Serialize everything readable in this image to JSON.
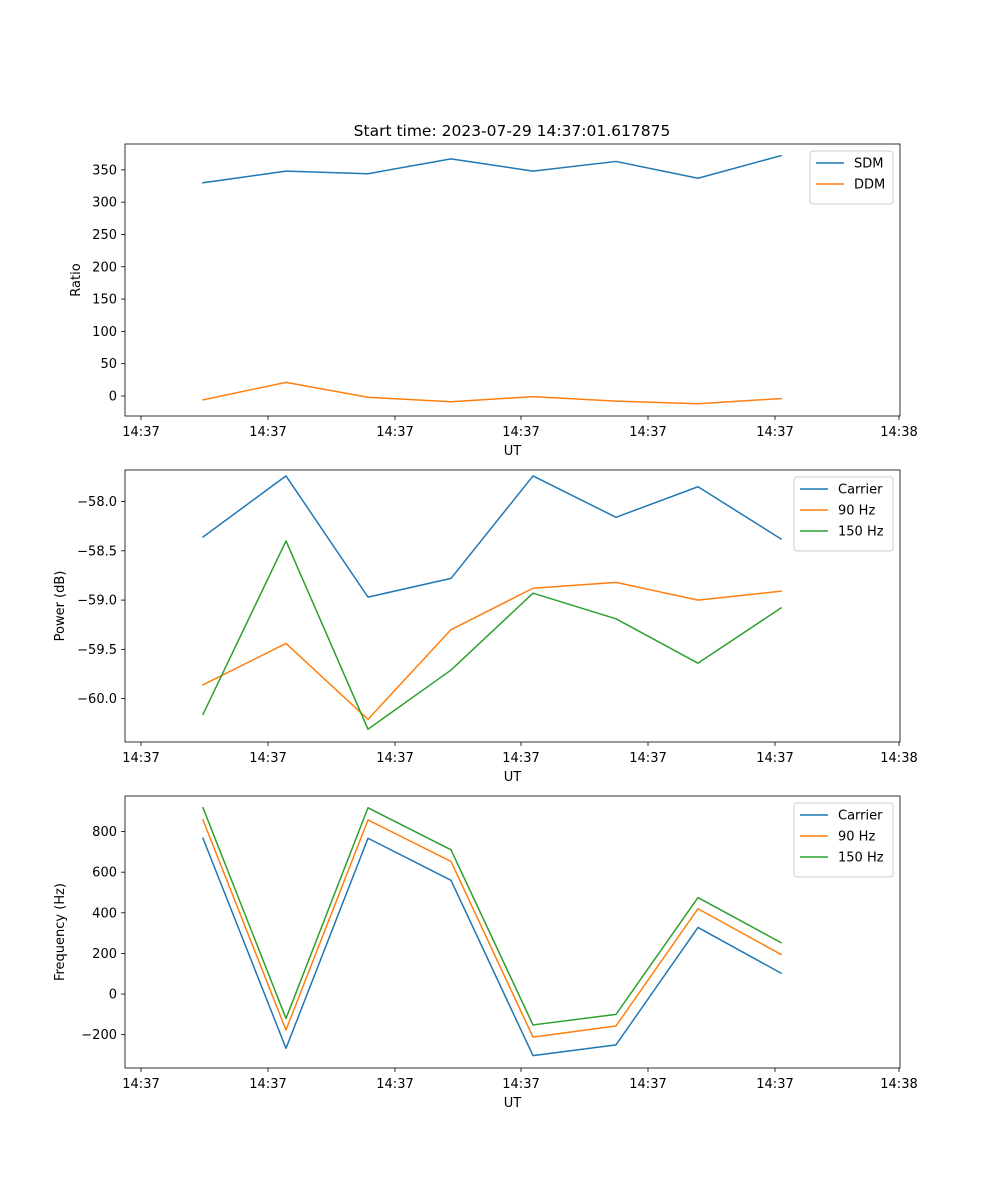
{
  "title": "Start time: 2023-07-29 14:37:01.617875",
  "chart_data": [
    {
      "type": "line",
      "xlabel": "UT",
      "ylabel": "Ratio",
      "x_tick_labels": [
        "14:37",
        "14:37",
        "14:37",
        "14:37",
        "14:37",
        "14:37",
        "14:38"
      ],
      "yticks": [
        0,
        50,
        100,
        150,
        200,
        250,
        300,
        350
      ],
      "ylim": [
        -31,
        390
      ],
      "legend_position": "top-right",
      "series": [
        {
          "name": "SDM",
          "color": "#1f77b4",
          "values": [
            330,
            348,
            344,
            367,
            348,
            363,
            337,
            372
          ]
        },
        {
          "name": "DDM",
          "color": "#ff7f0e",
          "values": [
            -6,
            21,
            -2,
            -9,
            -1,
            -8,
            -12,
            -4
          ]
        }
      ]
    },
    {
      "type": "line",
      "xlabel": "UT",
      "ylabel": "Power (dB)",
      "x_tick_labels": [
        "14:37",
        "14:37",
        "14:37",
        "14:37",
        "14:37",
        "14:37",
        "14:38"
      ],
      "yticks": [
        -60.0,
        -59.5,
        -59.0,
        -58.5,
        -58.0
      ],
      "ytick_labels": [
        "−60.0",
        "−59.5",
        "−59.0",
        "−58.5",
        "−58.0"
      ],
      "ylim": [
        -60.44,
        -57.68
      ],
      "legend_position": "top-right",
      "series": [
        {
          "name": "Carrier",
          "color": "#1f77b4",
          "values": [
            -58.36,
            -57.74,
            -58.97,
            -58.78,
            -57.74,
            -58.16,
            -57.85,
            -58.38
          ]
        },
        {
          "name": "90 Hz",
          "color": "#ff7f0e",
          "values": [
            -59.86,
            -59.44,
            -60.21,
            -59.3,
            -58.88,
            -58.82,
            -59.0,
            -58.91
          ]
        },
        {
          "name": "150 Hz",
          "color": "#2ca02c",
          "values": [
            -60.16,
            -58.4,
            -60.31,
            -59.71,
            -58.93,
            -59.19,
            -59.64,
            -59.08
          ]
        }
      ]
    },
    {
      "type": "line",
      "xlabel": "UT",
      "ylabel": "Frequency (Hz)",
      "x_tick_labels": [
        "14:37",
        "14:37",
        "14:37",
        "14:37",
        "14:37",
        "14:37",
        "14:38"
      ],
      "yticks": [
        -200,
        0,
        200,
        400,
        600,
        800
      ],
      "ytick_labels": [
        "−200",
        "0",
        "200",
        "400",
        "600",
        "800"
      ],
      "ylim": [
        -364,
        975
      ],
      "legend_position": "top-right",
      "series": [
        {
          "name": "Carrier",
          "color": "#1f77b4",
          "values": [
            767,
            -267,
            767,
            560,
            -303,
            -250,
            328,
            103
          ]
        },
        {
          "name": "90 Hz",
          "color": "#ff7f0e",
          "values": [
            857,
            -177,
            857,
            653,
            -212,
            -157,
            420,
            195
          ]
        },
        {
          "name": "150 Hz",
          "color": "#2ca02c",
          "values": [
            917,
            -120,
            917,
            710,
            -152,
            -100,
            475,
            253
          ]
        }
      ]
    }
  ]
}
